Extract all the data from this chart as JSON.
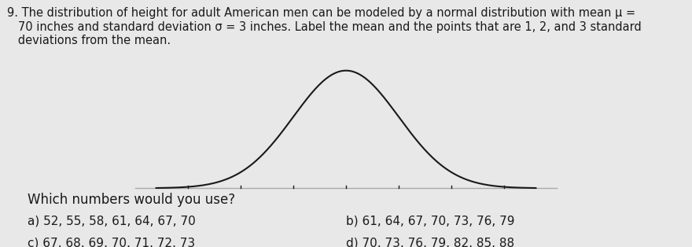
{
  "question_number": "9.",
  "question_text_line1": "The distribution of height for adult American men can be modeled by a normal distribution with mean μ =",
  "question_text_line2": "70 inches and standard deviation σ = 3 inches. Label the mean and the points that are 1, 2, and 3 standard",
  "question_text_line3": "deviations from the mean.",
  "which_numbers": "Which numbers would you use?",
  "option_a": "a) 52, 55, 58, 61, 64, 67, 70",
  "option_b": "b) 61, 64, 67, 70, 73, 76, 79",
  "option_c": "c) 67, 68, 69, 70, 71, 72, 73",
  "option_d": "d) 70, 73, 76, 79, 82, 85, 88",
  "mean": 70,
  "std": 3,
  "curve_color": "#1a1a1a",
  "baseline_color": "#aaaaaa",
  "tick_positions": [
    61,
    64,
    67,
    70,
    73,
    76,
    79
  ],
  "background_color": "#e8e8e8",
  "text_color": "#1a1a1a",
  "font_size_question": 10.5,
  "font_size_options": 11,
  "font_size_which": 12
}
